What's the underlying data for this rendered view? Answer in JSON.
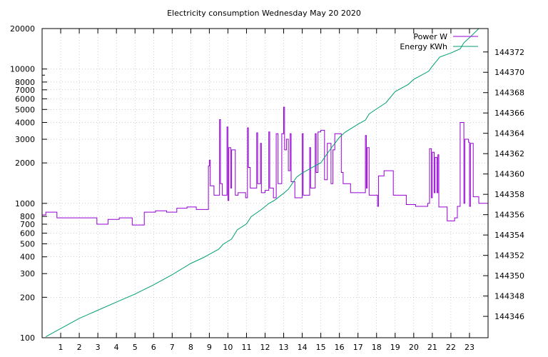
{
  "chart_data": {
    "type": "line",
    "title": "Electricity consumption Wednesday May 20 2020",
    "xlabel": "",
    "ylabel": "",
    "xlim": [
      0,
      24
    ],
    "x_ticks": [
      1,
      2,
      3,
      4,
      5,
      6,
      7,
      8,
      9,
      10,
      11,
      12,
      13,
      14,
      15,
      16,
      17,
      18,
      19,
      20,
      21,
      22,
      23
    ],
    "y_scale": "log",
    "ylim": [
      100,
      20000
    ],
    "y_ticks": [
      100,
      200,
      300,
      400,
      500,
      600,
      700,
      800,
      1000,
      2000,
      3000,
      4000,
      5000,
      6000,
      7000,
      8000,
      10000,
      20000
    ],
    "y2_scale": "linear",
    "y2lim": [
      144343.9,
      144374.3
    ],
    "y2_ticks": [
      144346,
      144348,
      144350,
      144352,
      144354,
      144356,
      144358,
      144360,
      144362,
      144364,
      144366,
      144368,
      144370,
      144372
    ],
    "grid": true,
    "legend_position": "top-right",
    "series": [
      {
        "name": "Power W",
        "axis": "left",
        "color": "#9400d3",
        "points": [
          [
            0,
            820
          ],
          [
            0.2,
            820
          ],
          [
            0.2,
            860
          ],
          [
            0.8,
            860
          ],
          [
            0.8,
            780
          ],
          [
            2.95,
            780
          ],
          [
            2.95,
            700
          ],
          [
            3.55,
            700
          ],
          [
            3.55,
            760
          ],
          [
            4.15,
            760
          ],
          [
            4.15,
            780
          ],
          [
            4.85,
            780
          ],
          [
            4.85,
            690
          ],
          [
            5.5,
            690
          ],
          [
            5.5,
            860
          ],
          [
            6.1,
            860
          ],
          [
            6.1,
            880
          ],
          [
            6.7,
            880
          ],
          [
            6.7,
            860
          ],
          [
            7.25,
            860
          ],
          [
            7.25,
            920
          ],
          [
            7.8,
            920
          ],
          [
            7.8,
            940
          ],
          [
            8.3,
            940
          ],
          [
            8.3,
            900
          ],
          [
            8.95,
            900
          ],
          [
            8.95,
            1900
          ],
          [
            9.0,
            1900
          ],
          [
            9.0,
            2100
          ],
          [
            9.05,
            2100
          ],
          [
            9.05,
            1350
          ],
          [
            9.25,
            1350
          ],
          [
            9.25,
            1150
          ],
          [
            9.55,
            1150
          ],
          [
            9.55,
            4200
          ],
          [
            9.6,
            4200
          ],
          [
            9.6,
            1400
          ],
          [
            9.7,
            1400
          ],
          [
            9.7,
            1150
          ],
          [
            9.95,
            1150
          ],
          [
            9.95,
            3700
          ],
          [
            10.0,
            3700
          ],
          [
            10.0,
            1050
          ],
          [
            10.05,
            1050
          ],
          [
            10.05,
            2600
          ],
          [
            10.15,
            2600
          ],
          [
            10.15,
            1300
          ],
          [
            10.2,
            1300
          ],
          [
            10.2,
            2500
          ],
          [
            10.4,
            2500
          ],
          [
            10.4,
            1150
          ],
          [
            10.55,
            1150
          ],
          [
            10.55,
            1200
          ],
          [
            10.95,
            1200
          ],
          [
            10.95,
            1100
          ],
          [
            11.05,
            1100
          ],
          [
            11.05,
            3650
          ],
          [
            11.1,
            3650
          ],
          [
            11.1,
            1850
          ],
          [
            11.2,
            1850
          ],
          [
            11.2,
            1300
          ],
          [
            11.55,
            1300
          ],
          [
            11.55,
            3350
          ],
          [
            11.6,
            3350
          ],
          [
            11.6,
            1400
          ],
          [
            11.75,
            1400
          ],
          [
            11.75,
            2800
          ],
          [
            11.8,
            2800
          ],
          [
            11.8,
            1200
          ],
          [
            12.0,
            1200
          ],
          [
            12.0,
            1250
          ],
          [
            12.2,
            1250
          ],
          [
            12.2,
            3400
          ],
          [
            12.25,
            3400
          ],
          [
            12.25,
            1300
          ],
          [
            12.45,
            1300
          ],
          [
            12.45,
            1100
          ],
          [
            12.6,
            1100
          ],
          [
            12.6,
            3300
          ],
          [
            12.7,
            3300
          ],
          [
            12.7,
            1400
          ],
          [
            12.9,
            1400
          ],
          [
            12.9,
            3300
          ],
          [
            13.0,
            3300
          ],
          [
            13.0,
            5200
          ],
          [
            13.05,
            5200
          ],
          [
            13.05,
            2500
          ],
          [
            13.15,
            2500
          ],
          [
            13.15,
            3000
          ],
          [
            13.25,
            3000
          ],
          [
            13.25,
            1750
          ],
          [
            13.35,
            1750
          ],
          [
            13.35,
            3300
          ],
          [
            13.4,
            3300
          ],
          [
            13.4,
            1450
          ],
          [
            13.6,
            1450
          ],
          [
            13.6,
            1100
          ],
          [
            14.0,
            1100
          ],
          [
            14.0,
            3300
          ],
          [
            14.05,
            3300
          ],
          [
            14.05,
            1150
          ],
          [
            14.4,
            1150
          ],
          [
            14.4,
            2600
          ],
          [
            14.45,
            2600
          ],
          [
            14.45,
            1300
          ],
          [
            14.7,
            1300
          ],
          [
            14.7,
            3300
          ],
          [
            14.75,
            3300
          ],
          [
            14.75,
            1700
          ],
          [
            14.85,
            1700
          ],
          [
            14.85,
            3400
          ],
          [
            15.0,
            3400
          ],
          [
            15.0,
            3500
          ],
          [
            15.2,
            3500
          ],
          [
            15.2,
            1500
          ],
          [
            15.35,
            1500
          ],
          [
            15.35,
            2800
          ],
          [
            15.55,
            2800
          ],
          [
            15.55,
            1400
          ],
          [
            15.65,
            1400
          ],
          [
            15.65,
            2500
          ],
          [
            15.75,
            2500
          ],
          [
            15.75,
            3300
          ],
          [
            16.1,
            3300
          ],
          [
            16.1,
            1700
          ],
          [
            16.2,
            1700
          ],
          [
            16.2,
            1400
          ],
          [
            16.6,
            1400
          ],
          [
            16.6,
            1200
          ],
          [
            17.4,
            1200
          ],
          [
            17.4,
            3200
          ],
          [
            17.45,
            3200
          ],
          [
            17.45,
            1300
          ],
          [
            17.5,
            1300
          ],
          [
            17.5,
            2600
          ],
          [
            17.6,
            2600
          ],
          [
            17.6,
            1150
          ],
          [
            18.05,
            1150
          ],
          [
            18.05,
            950
          ],
          [
            18.1,
            950
          ],
          [
            18.1,
            1600
          ],
          [
            18.4,
            1600
          ],
          [
            18.4,
            1750
          ],
          [
            18.9,
            1750
          ],
          [
            18.9,
            1150
          ],
          [
            19.6,
            1150
          ],
          [
            19.6,
            980
          ],
          [
            20.1,
            980
          ],
          [
            20.1,
            950
          ],
          [
            20.75,
            950
          ],
          [
            20.75,
            1000
          ],
          [
            20.85,
            1000
          ],
          [
            20.85,
            2550
          ],
          [
            20.95,
            2550
          ],
          [
            20.95,
            1100
          ],
          [
            21.0,
            1100
          ],
          [
            21.0,
            2400
          ],
          [
            21.1,
            2400
          ],
          [
            21.1,
            1200
          ],
          [
            21.15,
            1200
          ],
          [
            21.15,
            2200
          ],
          [
            21.25,
            2200
          ],
          [
            21.25,
            1200
          ],
          [
            21.3,
            1200
          ],
          [
            21.3,
            2300
          ],
          [
            21.35,
            2300
          ],
          [
            21.35,
            940
          ],
          [
            21.8,
            940
          ],
          [
            21.8,
            740
          ],
          [
            22.2,
            740
          ],
          [
            22.2,
            780
          ],
          [
            22.35,
            780
          ],
          [
            22.35,
            950
          ],
          [
            22.5,
            950
          ],
          [
            22.5,
            4000
          ],
          [
            22.7,
            4000
          ],
          [
            22.7,
            1000
          ],
          [
            22.75,
            1000
          ],
          [
            22.75,
            3000
          ],
          [
            22.95,
            3000
          ],
          [
            22.95,
            2850
          ],
          [
            23.0,
            2850
          ],
          [
            23.0,
            950
          ],
          [
            23.05,
            950
          ],
          [
            23.05,
            2800
          ],
          [
            23.2,
            2800
          ],
          [
            23.2,
            1120
          ],
          [
            23.5,
            1120
          ],
          [
            23.5,
            1000
          ],
          [
            24,
            1000
          ]
        ]
      },
      {
        "name": "Energy KWh",
        "axis": "right",
        "color": "#009e73",
        "points": [
          [
            0.2,
            144344.0
          ],
          [
            1.0,
            144344.8
          ],
          [
            2.0,
            144345.8
          ],
          [
            3.0,
            144346.6
          ],
          [
            4.0,
            144347.4
          ],
          [
            5.0,
            144348.2
          ],
          [
            6.0,
            144349.1
          ],
          [
            7.0,
            144350.1
          ],
          [
            8.0,
            144351.2
          ],
          [
            8.7,
            144351.8
          ],
          [
            9.0,
            144352.1
          ],
          [
            9.5,
            144352.6
          ],
          [
            9.75,
            144353.1
          ],
          [
            10.2,
            144353.6
          ],
          [
            10.5,
            144354.5
          ],
          [
            11.0,
            144355.1
          ],
          [
            11.25,
            144355.8
          ],
          [
            11.8,
            144356.5
          ],
          [
            12.2,
            144357.1
          ],
          [
            12.5,
            144357.4
          ],
          [
            13.0,
            144358.1
          ],
          [
            13.25,
            144358.5
          ],
          [
            13.7,
            144359.7
          ],
          [
            14.0,
            144360.1
          ],
          [
            14.5,
            144360.6
          ],
          [
            15.0,
            144361.1
          ],
          [
            15.5,
            144362.4
          ],
          [
            16.0,
            144363.6
          ],
          [
            16.3,
            144364.1
          ],
          [
            17.0,
            144364.9
          ],
          [
            17.4,
            144365.3
          ],
          [
            17.6,
            144365.9
          ],
          [
            18.0,
            144366.4
          ],
          [
            18.5,
            144367.0
          ],
          [
            19.0,
            144368.1
          ],
          [
            19.7,
            144368.8
          ],
          [
            20.0,
            144369.3
          ],
          [
            20.8,
            144370.1
          ],
          [
            21.0,
            144370.6
          ],
          [
            21.4,
            144371.5
          ],
          [
            22.0,
            144371.9
          ],
          [
            22.5,
            144372.3
          ],
          [
            22.7,
            144372.9
          ],
          [
            23.0,
            144373.4
          ],
          [
            23.5,
            144374.3
          ]
        ]
      }
    ]
  }
}
